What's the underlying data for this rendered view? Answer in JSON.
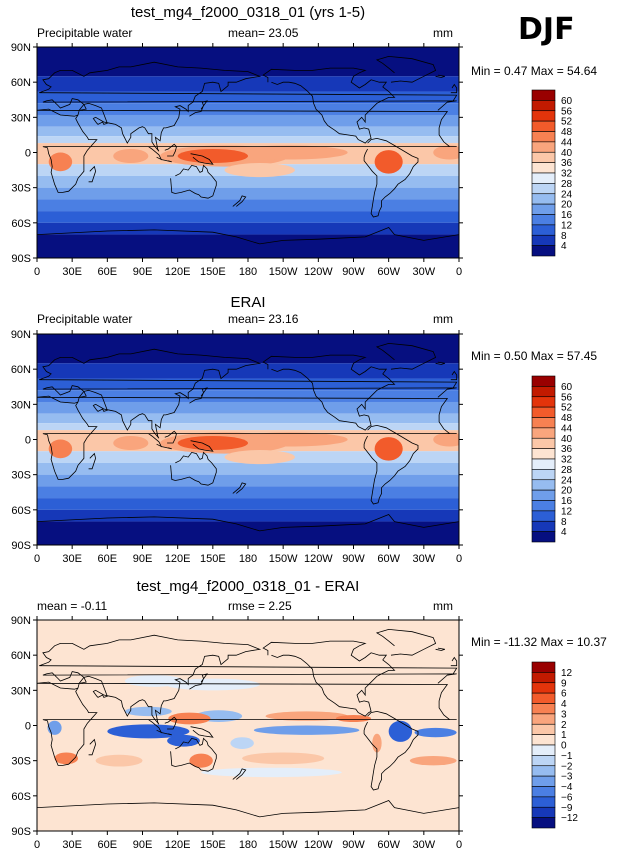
{
  "season": "DJF",
  "panels": [
    {
      "title": "test_mg4_f2000_0318_01 (yrs 1-5)",
      "left_label": "Precipitable water",
      "center_label": "mean=  23.05",
      "right_label": "mm",
      "minmax": "Min =    0.47  Max =   54.64",
      "colorbar_labels": [
        "60",
        "56",
        "52",
        "48",
        "44",
        "40",
        "36",
        "32",
        "28",
        "24",
        "20",
        "16",
        "12",
        "8",
        "4"
      ],
      "colorbar_colors": [
        "#990000",
        "#c21a00",
        "#e3340b",
        "#f25b2b",
        "#f78152",
        "#f9a57d",
        "#fbc7a8",
        "#fde4d2",
        "#e4eefa",
        "#bcd5f5",
        "#96bcf0",
        "#6f9eea",
        "#4b7fe3",
        "#2c5fd6",
        "#1638b8",
        "#060f80"
      ],
      "map_style": "model"
    },
    {
      "title": "ERAI",
      "left_label": "Precipitable water",
      "center_label": "mean=  23.16",
      "right_label": "mm",
      "minmax": "Min =    0.50  Max =   57.45",
      "colorbar_labels": [
        "60",
        "56",
        "52",
        "48",
        "44",
        "40",
        "36",
        "32",
        "28",
        "24",
        "20",
        "16",
        "12",
        "8",
        "4"
      ],
      "colorbar_colors": [
        "#990000",
        "#c21a00",
        "#e3340b",
        "#f25b2b",
        "#f78152",
        "#f9a57d",
        "#fbc7a8",
        "#fde4d2",
        "#e4eefa",
        "#bcd5f5",
        "#96bcf0",
        "#6f9eea",
        "#4b7fe3",
        "#2c5fd6",
        "#1638b8",
        "#060f80"
      ],
      "map_style": "obs"
    },
    {
      "title": "test_mg4_f2000_0318_01 - ERAI",
      "left_label": "mean =   -0.11",
      "center_label": "rmse =     2.25",
      "right_label": "mm",
      "minmax": "Min = -11.32  Max =   10.37",
      "colorbar_labels": [
        "12",
        "9",
        "6",
        "4",
        "3",
        "2",
        "1",
        "0",
        "−1",
        "−2",
        "−3",
        "−4",
        "−6",
        "−9",
        "−12"
      ],
      "colorbar_colors": [
        "#990000",
        "#c21a00",
        "#e3340b",
        "#f25b2b",
        "#f78152",
        "#f9a57d",
        "#fbc7a8",
        "#fde4d2",
        "#e4eefa",
        "#bcd5f5",
        "#96bcf0",
        "#6f9eea",
        "#4b7fe3",
        "#2c5fd6",
        "#1638b8",
        "#060f80"
      ],
      "map_style": "diff"
    }
  ],
  "lat_labels": [
    "90N",
    "60N",
    "30N",
    "0",
    "30S",
    "60S",
    "90S"
  ],
  "lon_labels": [
    "0",
    "30E",
    "60E",
    "90E",
    "120E",
    "150E",
    "180",
    "150W",
    "120W",
    "90W",
    "60W",
    "30W",
    "0"
  ]
}
